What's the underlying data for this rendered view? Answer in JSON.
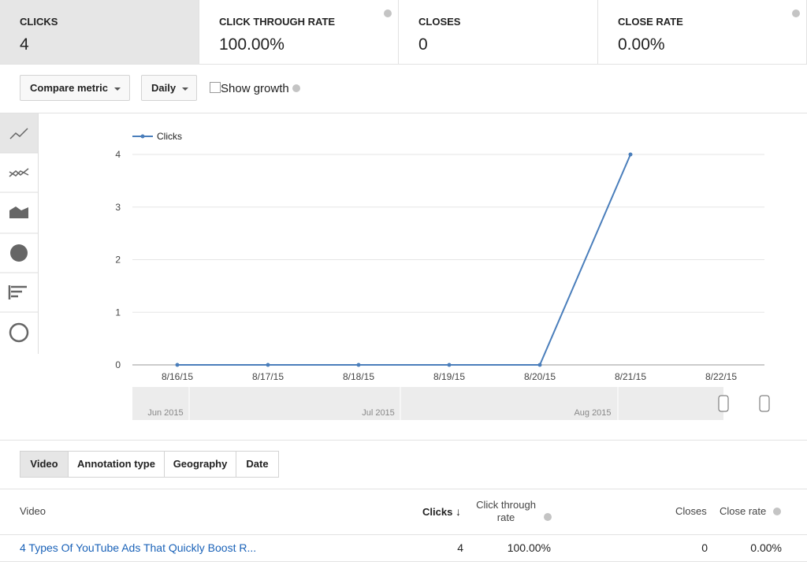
{
  "metrics": [
    {
      "label": "CLICKS",
      "value": "4"
    },
    {
      "label": "CLICK THROUGH RATE",
      "value": "100.00%"
    },
    {
      "label": "CLOSES",
      "value": "0"
    },
    {
      "label": "CLOSE RATE",
      "value": "0.00%"
    }
  ],
  "controls": {
    "compare": "Compare metric",
    "period": "Daily",
    "growth": "Show growth"
  },
  "chart_data": {
    "type": "line",
    "x": [
      "8/16/15",
      "8/17/15",
      "8/18/15",
      "8/19/15",
      "8/20/15",
      "8/21/15",
      "8/22/15"
    ],
    "series": [
      {
        "name": "Clicks",
        "color": "#4a7ebb",
        "values": [
          0,
          0,
          0,
          0,
          0,
          4,
          null
        ]
      }
    ],
    "ylim": [
      0,
      4
    ],
    "yticks": [
      0,
      1,
      2,
      3,
      4
    ],
    "grid": true
  },
  "timeline": {
    "labels": [
      "Jun 2015",
      "Jul 2015",
      "Aug 2015"
    ]
  },
  "tabs": [
    "Video",
    "Annotation type",
    "Geography",
    "Date"
  ],
  "table": {
    "headers": [
      "Video",
      "Clicks",
      "Click through rate",
      "Closes",
      "Close rate"
    ],
    "rows": [
      [
        "4 Types Of YouTube Ads That Quickly Boost R...",
        "4",
        "100.00%",
        "0",
        "0.00%"
      ]
    ]
  }
}
